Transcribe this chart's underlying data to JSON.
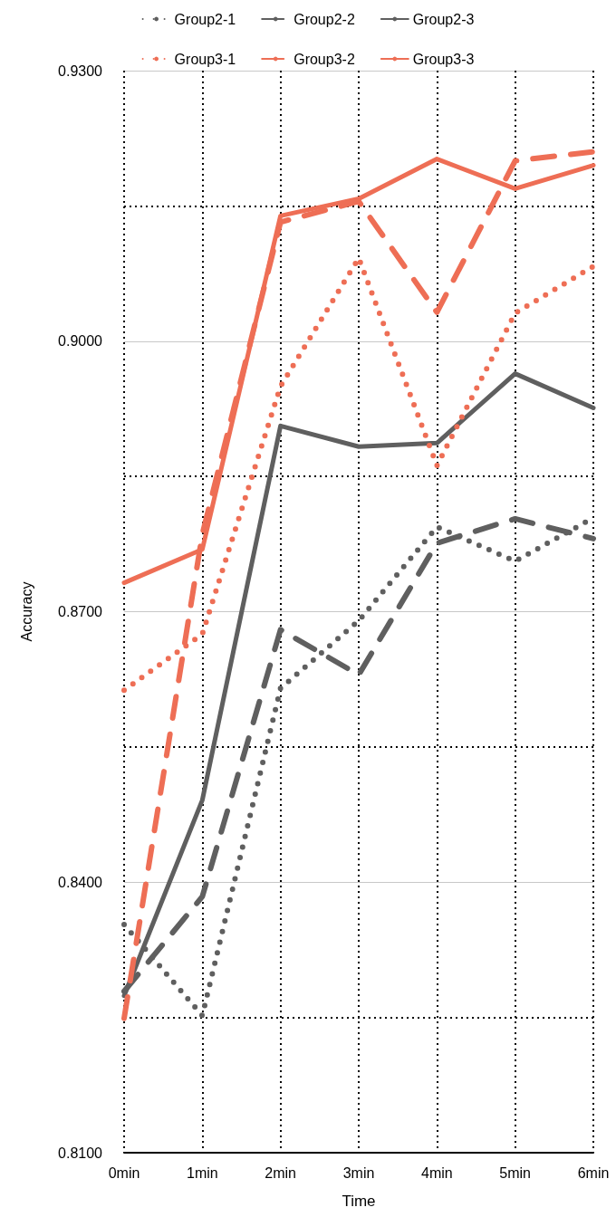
{
  "chart_data": {
    "type": "line",
    "xlabel": "Time",
    "ylabel": "Accuracy",
    "categories": [
      "0min",
      "1min",
      "2min",
      "3min",
      "4min",
      "5min",
      "6min"
    ],
    "ylim": [
      0.81,
      0.93
    ],
    "yticks": [
      {
        "value": 0.81,
        "label": "0.8100"
      },
      {
        "value": 0.825,
        "label": null
      },
      {
        "value": 0.84,
        "label": "0.8400"
      },
      {
        "value": 0.855,
        "label": null
      },
      {
        "value": 0.87,
        "label": "0.8700"
      },
      {
        "value": 0.885,
        "label": null
      },
      {
        "value": 0.9,
        "label": "0.9000"
      },
      {
        "value": 0.915,
        "label": null
      },
      {
        "value": 0.93,
        "label": "0.9300"
      }
    ],
    "grid": true,
    "legend": "top",
    "marker": "none",
    "series": [
      {
        "name": "Group2-1",
        "color": "#5f5f5f",
        "line_style": "dotted",
        "values": [
          0.8353,
          0.8252,
          0.8615,
          0.869,
          0.8794,
          0.8756,
          0.8804
        ]
      },
      {
        "name": "Group2-2",
        "color": "#5f5f5f",
        "line_style": "dashed",
        "values": [
          0.8279,
          0.8384,
          0.868,
          0.863,
          0.8776,
          0.8803,
          0.8781
        ]
      },
      {
        "name": "Group2-3",
        "color": "#5f5f5f",
        "line_style": "solid",
        "values": [
          0.8274,
          0.8491,
          0.8906,
          0.8883,
          0.8887,
          0.8964,
          0.8926
        ]
      },
      {
        "name": "Group3-1",
        "color": "#ee6e55",
        "line_style": "dotted",
        "values": [
          0.8613,
          0.8675,
          0.895,
          0.9092,
          0.8862,
          0.9031,
          0.9083
        ]
      },
      {
        "name": "Group3-2",
        "color": "#ee6e55",
        "line_style": "dashed",
        "values": [
          0.8249,
          0.8786,
          0.9132,
          0.9155,
          0.9032,
          0.92,
          0.921
        ]
      },
      {
        "name": "Group3-3",
        "color": "#ee6e55",
        "line_style": "solid",
        "values": [
          0.8732,
          0.8769,
          0.9139,
          0.9158,
          0.9202,
          0.9169,
          0.9195
        ]
      }
    ]
  }
}
